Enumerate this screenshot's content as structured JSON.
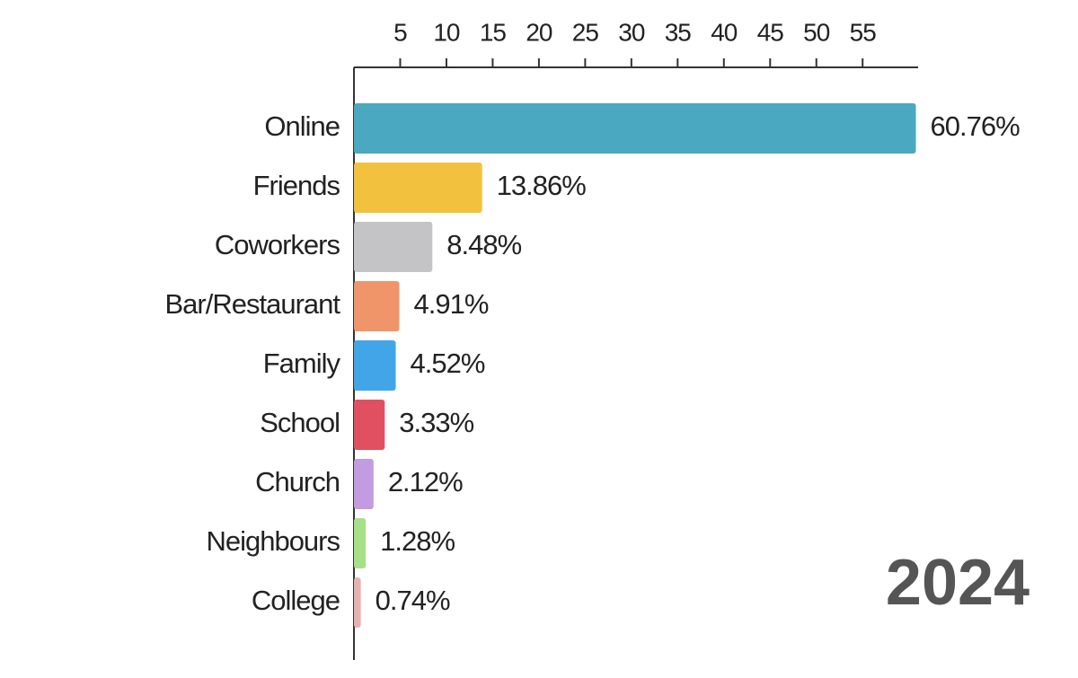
{
  "chart_data": {
    "type": "bar",
    "orientation": "horizontal",
    "categories": [
      "Online",
      "Friends",
      "Coworkers",
      "Bar/Restaurant",
      "Family",
      "School",
      "Church",
      "Neighbours",
      "College"
    ],
    "values": [
      60.76,
      13.86,
      8.48,
      4.91,
      4.52,
      3.33,
      2.12,
      1.28,
      0.74
    ],
    "value_labels": [
      "60.76%",
      "13.86%",
      "8.48%",
      "4.91%",
      "4.52%",
      "3.33%",
      "2.12%",
      "1.28%",
      "0.74%"
    ],
    "colors": [
      "#4aa8c0",
      "#f2c23e",
      "#c4c4c6",
      "#f0956a",
      "#42a5e8",
      "#e05060",
      "#c39be0",
      "#a8e08a",
      "#e8b0b0"
    ],
    "xlim": [
      0,
      61
    ],
    "xticks": [
      5,
      10,
      15,
      20,
      25,
      30,
      35,
      40,
      45,
      50,
      55
    ],
    "annotation": "2024"
  }
}
